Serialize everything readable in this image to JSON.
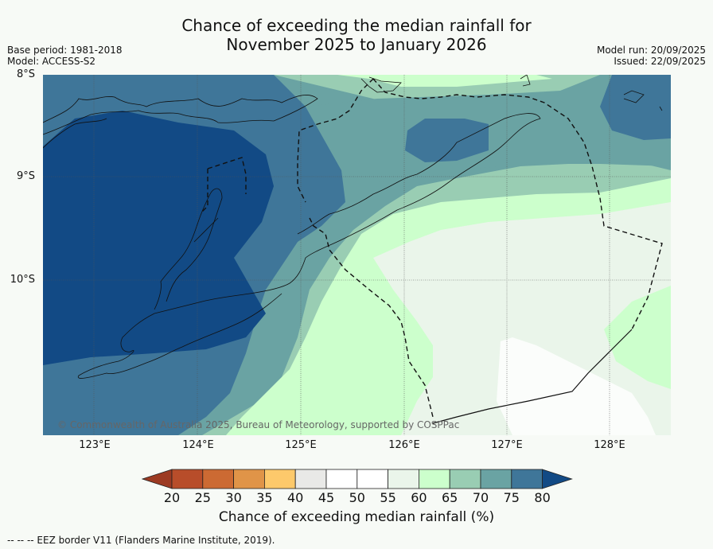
{
  "title_line1": "Chance of exceeding the median rainfall for",
  "title_line2": "November 2025 to January 2026",
  "meta_left": {
    "base_period": "Base period: 1981-2018",
    "model": "Model: ACCESS-S2"
  },
  "meta_right": {
    "model_run": "Model run: 20/09/2025",
    "issued": "Issued: 22/09/2025"
  },
  "lat_labels": [
    "8°S",
    "9°S",
    "10°S"
  ],
  "lon_labels": [
    "123°E",
    "124°E",
    "125°E",
    "126°E",
    "127°E",
    "128°E"
  ],
  "copyright": "© Commonwealth of Australia 2025, Bureau of Meteorology, supported by COSPPac",
  "colorbar": {
    "ticks": [
      "20",
      "25",
      "30",
      "35",
      "40",
      "45",
      "50",
      "55",
      "60",
      "65",
      "70",
      "75",
      "80"
    ],
    "colors": [
      "#9c3a22",
      "#b84d2a",
      "#cc6a33",
      "#e09448",
      "#fdc96b",
      "#e9e9e7",
      "#ffffff",
      "#ffffff",
      "#eaf5ea",
      "#ccffcc",
      "#99cdb3",
      "#6aa3a3",
      "#3f7699",
      "#124a85"
    ],
    "label": "Chance of exceeding median rainfall (%)"
  },
  "footnote": "--  --  -- EEZ border V11 (Flanders Marine Institute, 2019).",
  "colors": {
    "c80": "#124a85",
    "c75": "#3f7699",
    "c70": "#6aa3a3",
    "c65": "#99cdb3",
    "c60": "#ccffcc",
    "c55": "#eaf5ea",
    "c50": "#fbfdfb"
  }
}
